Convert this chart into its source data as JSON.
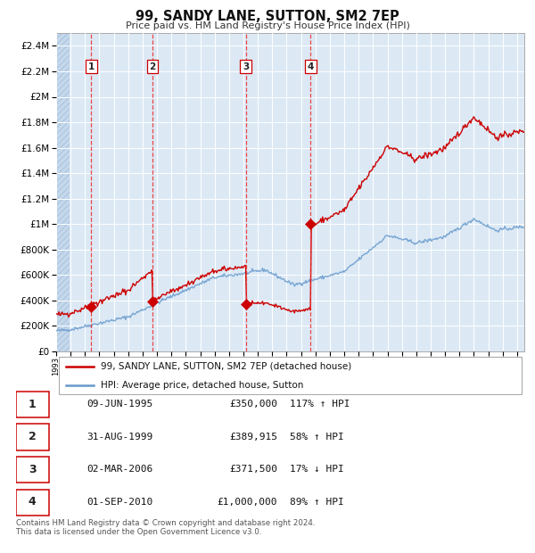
{
  "title": "99, SANDY LANE, SUTTON, SM2 7EP",
  "subtitle": "Price paid vs. HM Land Registry's House Price Index (HPI)",
  "footer": "Contains HM Land Registry data © Crown copyright and database right 2024.\nThis data is licensed under the Open Government Licence v3.0.",
  "legend_label_red": "99, SANDY LANE, SUTTON, SM2 7EP (detached house)",
  "legend_label_blue": "HPI: Average price, detached house, Sutton",
  "transactions": [
    {
      "num": 1,
      "date": "09-JUN-1995",
      "price": 350000,
      "hpi_pct": "117% ↑ HPI",
      "year": 1995.44
    },
    {
      "num": 2,
      "date": "31-AUG-1999",
      "price": 389915,
      "hpi_pct": "58% ↑ HPI",
      "year": 1999.67
    },
    {
      "num": 3,
      "date": "02-MAR-2006",
      "price": 371500,
      "hpi_pct": "17% ↓ HPI",
      "year": 2006.16
    },
    {
      "num": 4,
      "date": "01-SEP-2010",
      "price": 1000000,
      "hpi_pct": "89% ↑ HPI",
      "year": 2010.67
    }
  ],
  "ylim": [
    0,
    2500000
  ],
  "yticks": [
    0,
    200000,
    400000,
    600000,
    800000,
    1000000,
    1200000,
    1400000,
    1600000,
    1800000,
    2000000,
    2200000,
    2400000
  ],
  "xlim_start": 1993.0,
  "xlim_end": 2025.5,
  "background_color": "#dce9f5",
  "red_line_color": "#cc0000",
  "blue_line_color": "#6699cc",
  "marker_color": "#cc0000",
  "vline_color": "#ee3333",
  "grid_color": "#ffffff",
  "border_color": "#aaaaaa"
}
